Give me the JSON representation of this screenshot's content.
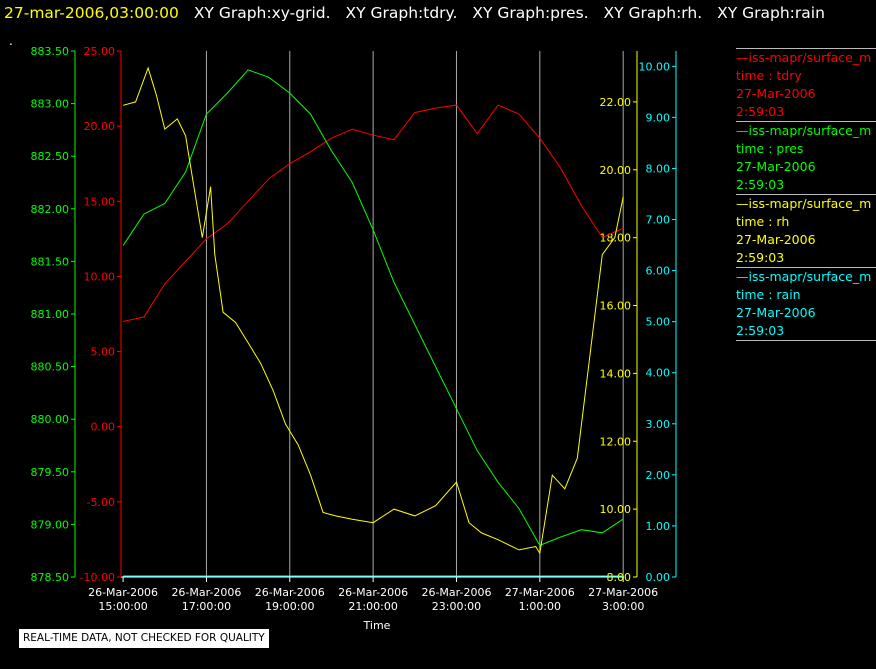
{
  "header": {
    "time": "27-mar-2006,03:00:00",
    "titles": [
      "XY Graph:xy-grid.",
      "XY Graph:tdry.",
      "XY Graph:pres.",
      "XY Graph:rh.",
      "XY Graph:rain"
    ],
    "dot": "."
  },
  "disclaimer": "REAL-TIME DATA, NOT CHECKED FOR QUALITY",
  "colors": {
    "tdry": "#ff0000",
    "pres": "#00ff00",
    "rh": "#ffff00",
    "rain": "#00ffff",
    "grid": "#aaaaaa",
    "background": "#000000"
  },
  "legend": [
    {
      "name": "—iss-mapr/surface_m",
      "var": "time : tdry",
      "date": "27-Mar-2006",
      "time": "2:59:03",
      "color": "#ff0000"
    },
    {
      "name": "—iss-mapr/surface_m",
      "var": "time : pres",
      "date": "27-Mar-2006",
      "time": "2:59:03",
      "color": "#00ff00"
    },
    {
      "name": "—iss-mapr/surface_m",
      "var": "time : rh",
      "date": "27-Mar-2006",
      "time": "2:59:03",
      "color": "#ffff00"
    },
    {
      "name": "—iss-mapr/surface_m",
      "var": "time : rain",
      "date": "27-Mar-2006",
      "time": "2:59:03",
      "color": "#00ffff"
    }
  ],
  "chart_data": {
    "type": "line",
    "xlabel": "Time",
    "xlim": [
      14.95,
      27.02
    ],
    "x_ticks": [
      15,
      17,
      19,
      21,
      23,
      25,
      27
    ],
    "x_tick_labels": [
      [
        "26-Mar-2006",
        "15:00:00"
      ],
      [
        "26-Mar-2006",
        "17:00:00"
      ],
      [
        "26-Mar-2006",
        "19:00:00"
      ],
      [
        "26-Mar-2006",
        "21:00:00"
      ],
      [
        "26-Mar-2006",
        "23:00:00"
      ],
      [
        "27-Mar-2006",
        "1:00:00"
      ],
      [
        "27-Mar-2006",
        "3:00:00"
      ]
    ],
    "grid": "vertical",
    "axes": {
      "tdry": {
        "range": [
          -10,
          25
        ],
        "ticks": [
          "-10.00",
          "-5.00",
          "0.00",
          "5.00",
          "10.00",
          "15.00",
          "20.00",
          "25.00"
        ],
        "color": "#ff0000"
      },
      "pres": {
        "range": [
          878.5,
          883.5
        ],
        "ticks": [
          "878.50",
          "879.00",
          "879.50",
          "880.00",
          "880.50",
          "881.00",
          "881.50",
          "882.00",
          "882.50",
          "883.00",
          "883.50"
        ],
        "color": "#00ff00"
      },
      "rh": {
        "range": [
          8,
          23.5
        ],
        "ticks": [
          "8.00",
          "10.00",
          "12.00",
          "14.00",
          "16.00",
          "18.00",
          "20.00",
          "22.00"
        ],
        "color": "#ffff00"
      },
      "rain": {
        "range": [
          0,
          10.3
        ],
        "ticks": [
          "0.00",
          "1.00",
          "2.00",
          "3.00",
          "4.00",
          "5.00",
          "6.00",
          "7.00",
          "8.00",
          "9.00",
          "10.00"
        ],
        "color": "#00ffff"
      }
    },
    "series": [
      {
        "name": "tdry",
        "x": [
          15.0,
          15.5,
          16.0,
          16.5,
          17.0,
          17.5,
          18.0,
          18.5,
          19.0,
          19.5,
          20.0,
          20.5,
          21.0,
          21.5,
          22.0,
          22.5,
          23.0,
          23.5,
          24.0,
          24.5,
          25.0,
          25.5,
          26.0,
          26.5,
          27.0
        ],
        "y": [
          7.0,
          7.3,
          9.5,
          11.0,
          12.5,
          13.5,
          15.0,
          16.5,
          17.5,
          18.3,
          19.2,
          19.8,
          19.4,
          19.1,
          20.9,
          21.2,
          21.4,
          19.5,
          21.4,
          20.8,
          19.2,
          17.2,
          14.7,
          12.6,
          13.2
        ]
      },
      {
        "name": "pres",
        "x": [
          15.0,
          15.5,
          16.0,
          16.5,
          17.0,
          17.5,
          18.0,
          18.5,
          19.0,
          19.5,
          20.0,
          20.5,
          21.0,
          21.5,
          22.0,
          22.5,
          23.0,
          23.5,
          24.0,
          24.5,
          25.0,
          25.5,
          26.0,
          26.5,
          27.0
        ],
        "y": [
          881.65,
          881.95,
          882.05,
          882.35,
          882.9,
          883.1,
          883.32,
          883.25,
          883.1,
          882.9,
          882.55,
          882.25,
          881.8,
          881.3,
          880.9,
          880.5,
          880.1,
          879.7,
          879.4,
          879.15,
          878.8,
          878.88,
          878.95,
          878.92,
          879.05
        ]
      },
      {
        "name": "rh",
        "x": [
          15.0,
          15.3,
          15.6,
          15.8,
          16.0,
          16.3,
          16.5,
          16.7,
          16.9,
          17.1,
          17.2,
          17.4,
          17.7,
          18.0,
          18.3,
          18.6,
          18.9,
          19.2,
          19.5,
          19.8,
          20.1,
          20.5,
          21.0,
          21.5,
          22.0,
          22.5,
          23.0,
          23.3,
          23.6,
          24.0,
          24.5,
          24.9,
          25.0,
          25.3,
          25.6,
          25.9,
          26.2,
          26.5,
          26.8,
          27.0
        ],
        "y": [
          21.9,
          22.0,
          23.0,
          22.2,
          21.2,
          21.5,
          21.0,
          19.5,
          18.0,
          19.5,
          17.5,
          15.8,
          15.5,
          14.9,
          14.3,
          13.5,
          12.5,
          11.9,
          11.0,
          9.9,
          9.8,
          9.7,
          9.6,
          10.0,
          9.8,
          10.1,
          10.8,
          9.6,
          9.3,
          9.1,
          8.8,
          8.9,
          8.7,
          11.0,
          10.6,
          11.5,
          14.5,
          17.5,
          18.0,
          19.2
        ]
      },
      {
        "name": "rain",
        "x": [
          15.0,
          27.0
        ],
        "y": [
          0.02,
          0.02
        ]
      }
    ]
  }
}
